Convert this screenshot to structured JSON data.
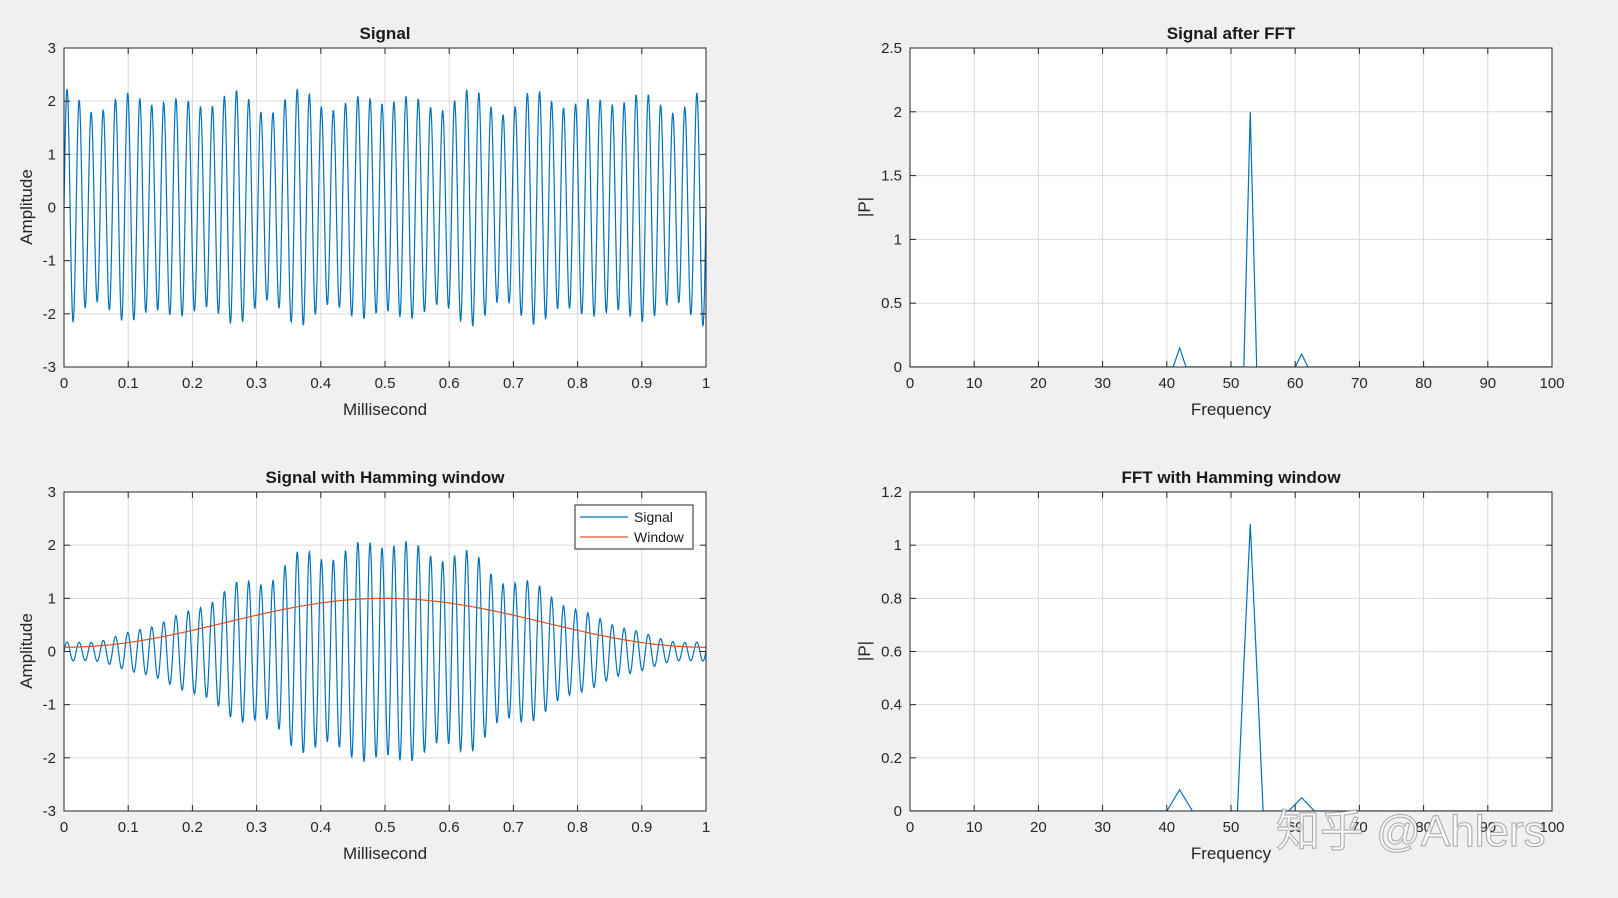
{
  "colors": {
    "signal": "#0072bd",
    "window": "#d95319"
  },
  "watermark": "知乎 @Ahlers",
  "chart_data": [
    {
      "id": "signal",
      "type": "line",
      "title": "Signal",
      "xlabel": "Millisecond",
      "ylabel": "Amplitude",
      "xlim": [
        0,
        1
      ],
      "ylim": [
        -3,
        3
      ],
      "xticks": [
        0,
        0.1,
        0.2,
        0.3,
        0.4,
        0.5,
        0.6,
        0.7,
        0.8,
        0.9,
        1
      ],
      "xtick_labels": [
        "0",
        "0.1",
        "0.2",
        "0.3",
        "0.4",
        "0.5",
        "0.6",
        "0.7",
        "0.8",
        "0.9",
        "1"
      ],
      "yticks": [
        -3,
        -2,
        -1,
        0,
        1,
        2,
        3
      ],
      "ytick_labels": [
        "-3",
        "-2",
        "-1",
        "0",
        "1",
        "2",
        "3"
      ],
      "grid": true,
      "series": [
        {
          "name": "Signal",
          "color_key": "signal",
          "kind": "sum_of_sines",
          "components": [
            {
              "amp": 2.0,
              "cycles": 53
            },
            {
              "amp": 0.15,
              "cycles": 42
            },
            {
              "amp": 0.1,
              "cycles": 61
            }
          ],
          "samples": 1200
        }
      ]
    },
    {
      "id": "fft",
      "type": "line",
      "title": "Signal after FFT",
      "xlabel": "Frequency",
      "ylabel": "|P|",
      "xlim": [
        0,
        100
      ],
      "ylim": [
        0,
        2.5
      ],
      "xticks": [
        0,
        10,
        20,
        30,
        40,
        50,
        60,
        70,
        80,
        90,
        100
      ],
      "xtick_labels": [
        "0",
        "10",
        "20",
        "30",
        "40",
        "50",
        "60",
        "70",
        "80",
        "90",
        "100"
      ],
      "yticks": [
        0,
        0.5,
        1,
        1.5,
        2,
        2.5
      ],
      "ytick_labels": [
        "0",
        "0.5",
        "1",
        "1.5",
        "2",
        "2.5"
      ],
      "grid": true,
      "series": [
        {
          "name": "|P|",
          "color_key": "signal",
          "kind": "points",
          "x": [
            0,
            41,
            42,
            43,
            52,
            53,
            54,
            60,
            61,
            62,
            100
          ],
          "y": [
            0,
            0,
            0.15,
            0,
            0,
            2.0,
            0,
            0,
            0.1,
            0,
            0
          ]
        }
      ]
    },
    {
      "id": "signal_hamming",
      "type": "line",
      "title": "Signal with Hamming window",
      "xlabel": "Millisecond",
      "ylabel": "Amplitude",
      "xlim": [
        0,
        1
      ],
      "ylim": [
        -3,
        3
      ],
      "xticks": [
        0,
        0.1,
        0.2,
        0.3,
        0.4,
        0.5,
        0.6,
        0.7,
        0.8,
        0.9,
        1
      ],
      "xtick_labels": [
        "0",
        "0.1",
        "0.2",
        "0.3",
        "0.4",
        "0.5",
        "0.6",
        "0.7",
        "0.8",
        "0.9",
        "1"
      ],
      "yticks": [
        -3,
        -2,
        -1,
        0,
        1,
        2,
        3
      ],
      "ytick_labels": [
        "-3",
        "-2",
        "-1",
        "0",
        "1",
        "2",
        "3"
      ],
      "grid": true,
      "legend": {
        "position": "top-right",
        "entries": [
          "Signal",
          "Window"
        ]
      },
      "series": [
        {
          "name": "Signal",
          "color_key": "signal",
          "kind": "windowed_sines",
          "components": [
            {
              "amp": 2.0,
              "cycles": 53
            },
            {
              "amp": 0.15,
              "cycles": 42
            },
            {
              "amp": 0.1,
              "cycles": 61
            }
          ],
          "samples": 1200
        },
        {
          "name": "Window",
          "color_key": "window",
          "kind": "hamming",
          "samples": 300
        }
      ]
    },
    {
      "id": "fft_hamming",
      "type": "line",
      "title": "FFT with Hamming window",
      "xlabel": "Frequency",
      "ylabel": "|P|",
      "xlim": [
        0,
        100
      ],
      "ylim": [
        0,
        1.2
      ],
      "xticks": [
        0,
        10,
        20,
        30,
        40,
        50,
        60,
        70,
        80,
        90,
        100
      ],
      "xtick_labels": [
        "0",
        "10",
        "20",
        "30",
        "40",
        "50",
        "60",
        "70",
        "80",
        "90",
        "100"
      ],
      "yticks": [
        0,
        0.2,
        0.4,
        0.6,
        0.8,
        1,
        1.2
      ],
      "ytick_labels": [
        "0",
        "0.2",
        "0.4",
        "0.6",
        "0.8",
        "1",
        "1.2"
      ],
      "grid": true,
      "series": [
        {
          "name": "|P|",
          "color_key": "signal",
          "kind": "points",
          "x": [
            0,
            40,
            42,
            44,
            51,
            52,
            53,
            54,
            55,
            59,
            61,
            63,
            100
          ],
          "y": [
            0,
            0,
            0.08,
            0,
            0,
            0.55,
            1.08,
            0.55,
            0,
            0,
            0.05,
            0,
            0
          ]
        }
      ]
    }
  ]
}
